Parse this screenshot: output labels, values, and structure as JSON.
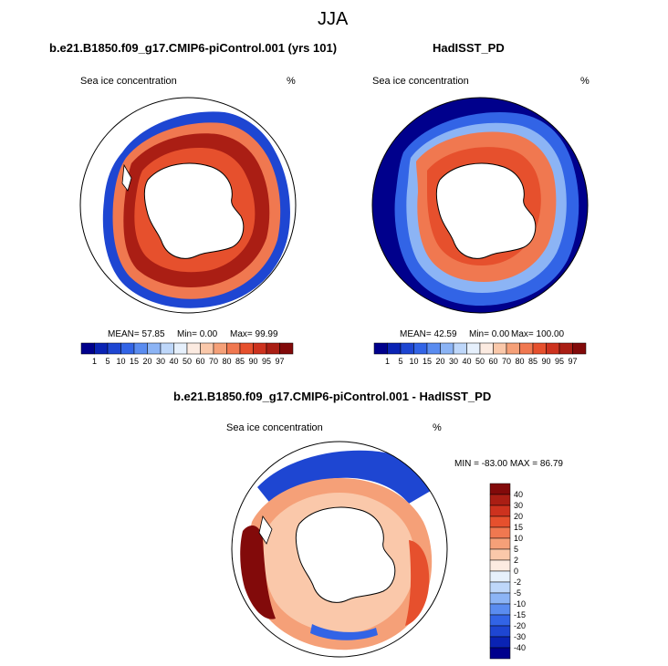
{
  "figure": {
    "title": "JJA"
  },
  "panels": [
    {
      "title": "b.e21.B1850.f09_g17.CMIP6-piControl.001 (yrs 101)",
      "left_label": "Sea ice concentration",
      "right_label": "%",
      "mean_text": "MEAN=  57.85",
      "min_text": "Min=   0.00",
      "max_text": "Max=  99.99"
    },
    {
      "title": "HadISST_PD",
      "left_label": "Sea ice concentration",
      "right_label": "%",
      "mean_text": "MEAN=  42.59",
      "min_text": "Min=   0.00",
      "max_text": "Max= 100.00"
    },
    {
      "title": "b.e21.B1850.f09_g17.CMIP6-piControl.001 - HadISST_PD",
      "left_label": "Sea ice concentration",
      "right_label": "%",
      "minmax_text": "MIN = -83.00 MAX =  86.79"
    }
  ],
  "colorbar_abs": {
    "labels": [
      "1",
      "5",
      "10",
      "15",
      "20",
      "30",
      "40",
      "50",
      "60",
      "70",
      "80",
      "85",
      "90",
      "95",
      "97"
    ],
    "colors": [
      "#00008c",
      "#0a23b4",
      "#1e46d2",
      "#3264e6",
      "#5a8cf0",
      "#8cb4f5",
      "#bed7fa",
      "#e6f0fc",
      "#fcebe1",
      "#fac8aa",
      "#f5a078",
      "#f07850",
      "#e6502d",
      "#cd321e",
      "#aa1e14",
      "#820a0a"
    ]
  },
  "colorbar_diff": {
    "labels": [
      "40",
      "30",
      "20",
      "15",
      "10",
      "5",
      "2",
      "0",
      "-2",
      "-5",
      "-10",
      "-15",
      "-20",
      "-30",
      "-40"
    ],
    "colors": [
      "#820a0a",
      "#aa1e14",
      "#cd321e",
      "#e6502d",
      "#f07850",
      "#f5a078",
      "#fac8aa",
      "#fcebe1",
      "#e6f0fc",
      "#bed7fa",
      "#8cb4f5",
      "#5a8cf0",
      "#3264e6",
      "#1e46d2",
      "#0a23b4",
      "#00008c"
    ]
  }
}
